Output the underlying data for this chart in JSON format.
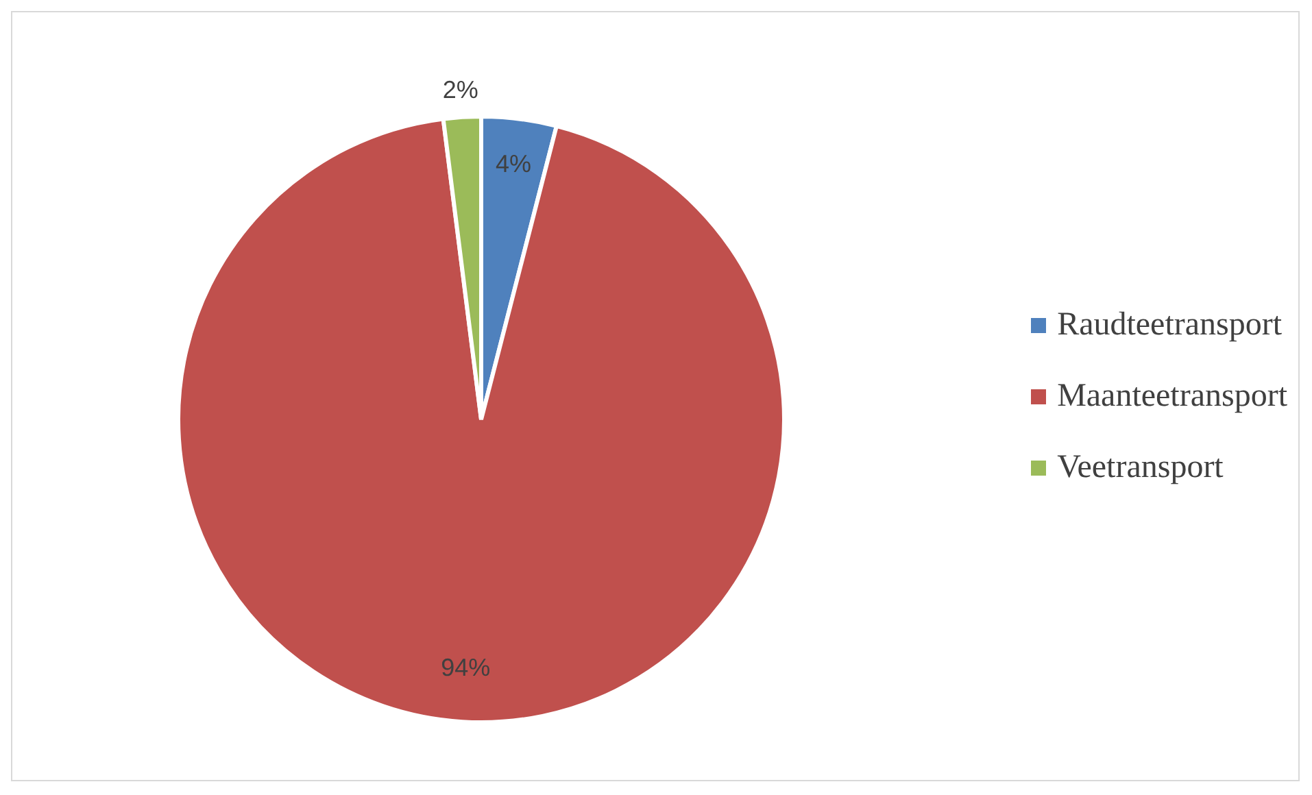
{
  "chart_data": {
    "type": "pie",
    "categories": [
      "Raudteetransport",
      "Maanteetransport",
      "Veetransport"
    ],
    "values": [
      4,
      94,
      2
    ],
    "colors": [
      "#4f81bd",
      "#c0504d",
      "#9bbb59"
    ],
    "value_labels": [
      "4%",
      "94%",
      "2%"
    ],
    "legend": "right"
  }
}
